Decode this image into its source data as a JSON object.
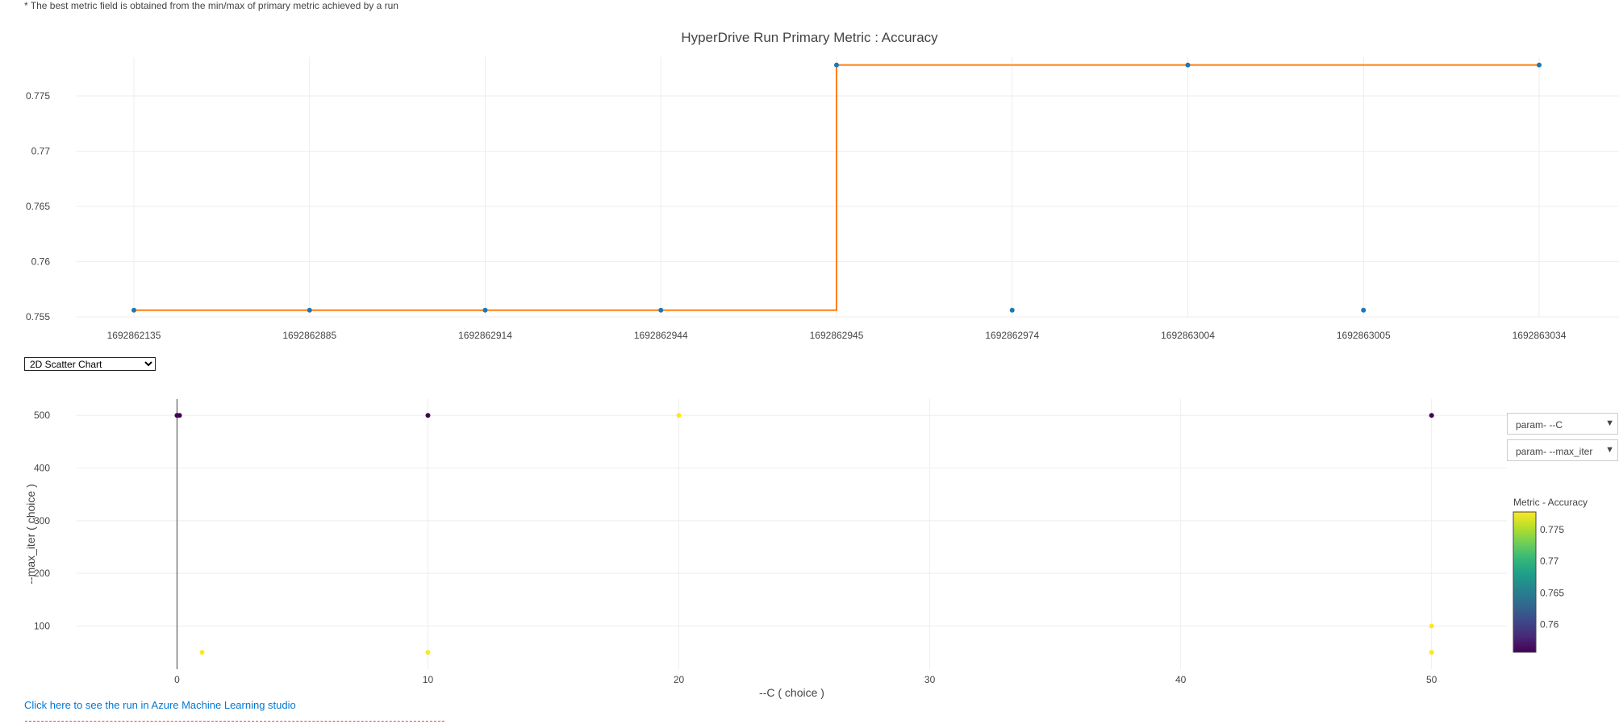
{
  "note": "* The best metric field is obtained from the min/max of primary metric achieved by a run",
  "chart_select": {
    "options": [
      "2D Scatter Chart"
    ],
    "selected": "2D Scatter Chart"
  },
  "dropdowns": [
    {
      "label": "param- --C"
    },
    {
      "label": "param- --max_iter"
    }
  ],
  "studio_link": "Click here to see the run in Azure Machine Learning studio",
  "colors": {
    "points": "#1f77b4",
    "best_line": "#ff7f0e",
    "grid": "#eeeeee",
    "link": "#0078d4"
  },
  "icons": {
    "dropdown_arrow": "triangle-down-icon"
  },
  "chart_data": [
    {
      "type": "line",
      "title": "HyperDrive Run Primary Metric : Accuracy",
      "categories": [
        "1692862135",
        "1692862885",
        "1692862914",
        "1692862944",
        "1692862945",
        "1692862974",
        "1692863004",
        "1692863005",
        "1692863034"
      ],
      "series": [
        {
          "values": [
            0.7556,
            0.7556,
            0.7556,
            0.7556,
            0.7778,
            0.7556,
            0.7778,
            0.7556,
            0.7778
          ]
        },
        {
          "values": [
            0.7556,
            0.7556,
            0.7556,
            0.7556,
            0.7778,
            0.7778,
            0.7778,
            0.7778,
            0.7778
          ]
        }
      ],
      "ylim": [
        0.755,
        0.7785
      ],
      "yticks": [
        0.755,
        0.76,
        0.765,
        0.77,
        0.775
      ],
      "ytick_labels": [
        "0.755",
        "0.76",
        "0.765",
        "0.77",
        "0.775"
      ],
      "grid": true
    },
    {
      "type": "scatter",
      "xlabel": "--C ( choice )",
      "ylabel": "--max_iter ( choice )",
      "xlim": [
        -4,
        53
      ],
      "ylim": [
        18,
        531
      ],
      "xticks": [
        0,
        10,
        20,
        30,
        40,
        50
      ],
      "xtick_labels": [
        "0",
        "10",
        "20",
        "30",
        "40",
        "50"
      ],
      "yticks": [
        100,
        200,
        300,
        400,
        500
      ],
      "ytick_labels": [
        "100",
        "200",
        "300",
        "400",
        "500"
      ],
      "points": [
        {
          "x": 0.001,
          "y": 500,
          "value": 0.7556
        },
        {
          "x": 0.01,
          "y": 500,
          "value": 0.7556
        },
        {
          "x": 0.1,
          "y": 500,
          "value": 0.7556
        },
        {
          "x": 10,
          "y": 500,
          "value": 0.7556
        },
        {
          "x": 20,
          "y": 500,
          "value": 0.7778
        },
        {
          "x": 50,
          "y": 500,
          "value": 0.7556
        },
        {
          "x": 1,
          "y": 50,
          "value": 0.7778
        },
        {
          "x": 10,
          "y": 50,
          "value": 0.7778
        },
        {
          "x": 50,
          "y": 100,
          "value": 0.7778
        },
        {
          "x": 50,
          "y": 50,
          "value": 0.7778
        }
      ],
      "colorbar": {
        "title": "Metric - Accuracy",
        "range": [
          0.7556,
          0.7778
        ],
        "ticks": [
          0.76,
          0.765,
          0.77,
          0.775
        ],
        "tick_labels": [
          "0.76",
          "0.765",
          "0.77",
          "0.775"
        ]
      }
    }
  ]
}
